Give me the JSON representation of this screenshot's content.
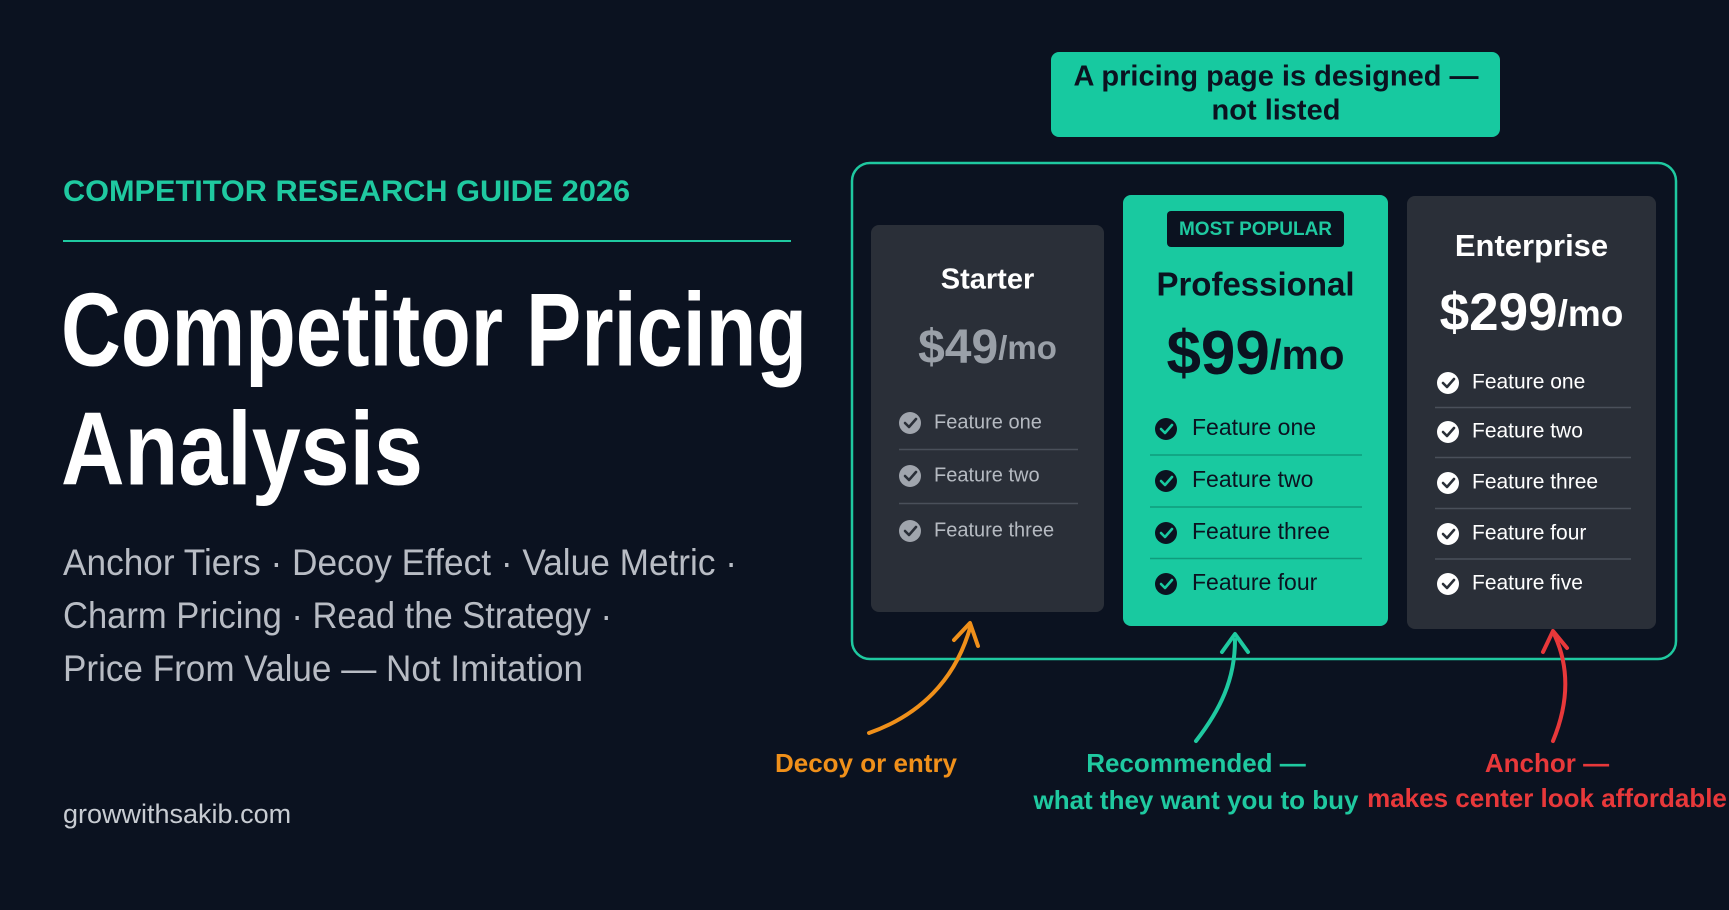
{
  "header": {
    "eyebrow": "COMPETITOR RESEARCH GUIDE 2026",
    "title_lines": [
      "Competitor Pricing",
      "Analysis"
    ],
    "subtitle_lines": [
      "Anchor Tiers · Decoy Effect · Value Metric ·",
      "Charm Pricing · Read the Strategy ·",
      "Price From Value — Not Imitation"
    ],
    "site": "growwithsakib.com"
  },
  "callout_lines": [
    "A pricing page is designed —",
    "not listed"
  ],
  "plans": [
    {
      "name": "Starter",
      "price": "$49",
      "period": "/mo",
      "features": [
        "Feature one",
        "Feature two",
        "Feature three"
      ]
    },
    {
      "badge": "MOST POPULAR",
      "name": "Professional",
      "price": "$99",
      "period": "/mo",
      "features": [
        "Feature one",
        "Feature two",
        "Feature three",
        "Feature four"
      ]
    },
    {
      "name": "Enterprise",
      "price": "$299",
      "period": "/mo",
      "features": [
        "Feature one",
        "Feature two",
        "Feature three",
        "Feature four",
        "Feature five"
      ]
    }
  ],
  "annotations": [
    {
      "lines": [
        "Decoy or entry"
      ]
    },
    {
      "lines": [
        "Recommended —",
        "what they want you to buy"
      ]
    },
    {
      "lines": [
        "Anchor —",
        "makes center look affordable"
      ]
    }
  ]
}
